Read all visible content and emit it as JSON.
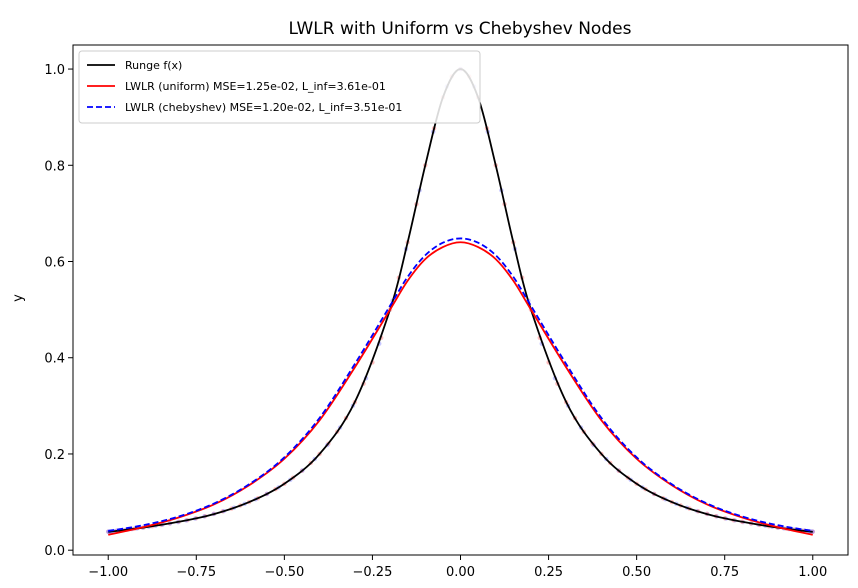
{
  "chart_data": {
    "type": "line",
    "title": "LWLR with Uniform vs Chebyshev Nodes",
    "xlabel": "",
    "ylabel": "y",
    "xlim": [
      -1.1,
      1.1
    ],
    "ylim": [
      -0.01,
      1.05
    ],
    "x_ticks": [
      -1.0,
      -0.75,
      -0.5,
      -0.25,
      0.0,
      0.25,
      0.5,
      0.75,
      1.0
    ],
    "x_tick_labels": [
      "−1.00",
      "−0.75",
      "−0.50",
      "−0.25",
      "0.00",
      "0.25",
      "0.50",
      "0.75",
      "1.00"
    ],
    "y_ticks": [
      0.0,
      0.2,
      0.4,
      0.6,
      0.8,
      1.0
    ],
    "y_tick_labels": [
      "0.0",
      "0.2",
      "0.4",
      "0.6",
      "0.8",
      "1.0"
    ],
    "grid": false,
    "legend_position": "top-left",
    "x": [
      -1.0,
      -0.9,
      -0.8,
      -0.7,
      -0.6,
      -0.5,
      -0.4,
      -0.3,
      -0.2,
      -0.15,
      -0.1,
      -0.05,
      0.0,
      0.05,
      0.1,
      0.15,
      0.2,
      0.3,
      0.4,
      0.5,
      0.6,
      0.7,
      0.8,
      0.9,
      1.0
    ],
    "series": [
      {
        "name": "Runge f(x)",
        "color": "#000000",
        "style": "solid",
        "values": [
          0.038,
          0.047,
          0.059,
          0.075,
          0.1,
          0.138,
          0.2,
          0.308,
          0.5,
          0.64,
          0.8,
          0.941,
          1.0,
          0.941,
          0.8,
          0.64,
          0.5,
          0.308,
          0.2,
          0.138,
          0.1,
          0.075,
          0.059,
          0.047,
          0.038
        ]
      },
      {
        "name": "LWLR (uniform) MSE=1.25e-02, L_inf=3.61e-01",
        "color": "#ff0000",
        "style": "solid",
        "values": [
          0.032,
          0.048,
          0.068,
          0.095,
          0.135,
          0.19,
          0.27,
          0.38,
          0.5,
          0.56,
          0.605,
          0.63,
          0.64,
          0.63,
          0.605,
          0.56,
          0.5,
          0.38,
          0.27,
          0.19,
          0.135,
          0.095,
          0.068,
          0.048,
          0.032
        ]
      },
      {
        "name": "LWLR (chebyshev) MSE=1.20e-02, L_inf=3.51e-01",
        "color": "#0000ff",
        "style": "dashed",
        "values": [
          0.04,
          0.052,
          0.07,
          0.097,
          0.137,
          0.193,
          0.275,
          0.387,
          0.508,
          0.568,
          0.613,
          0.639,
          0.648,
          0.639,
          0.613,
          0.568,
          0.508,
          0.387,
          0.275,
          0.193,
          0.137,
          0.097,
          0.07,
          0.052,
          0.04
        ]
      }
    ]
  }
}
